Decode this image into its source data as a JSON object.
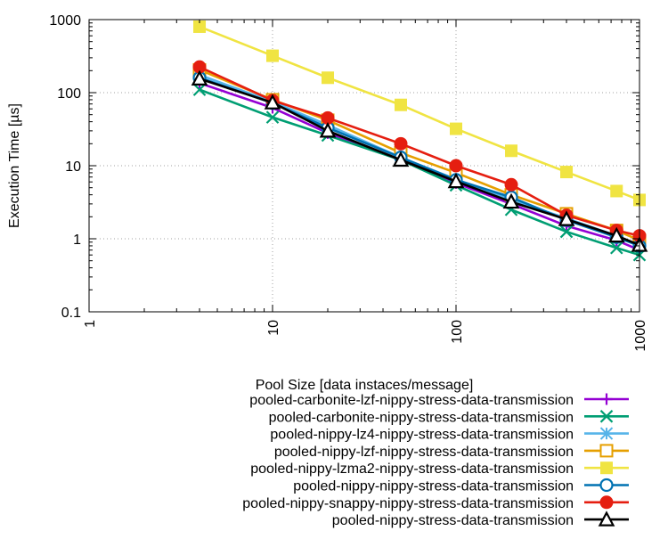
{
  "chart_data": {
    "type": "line",
    "title": "",
    "xlabel": "Pool Size [data instaces/message]",
    "ylabel": "Execution Time [µs]",
    "x_scale": "log",
    "y_scale": "log",
    "xlim": [
      1,
      1000
    ],
    "ylim": [
      0.1,
      1000
    ],
    "x_ticks": [
      {
        "value": 1,
        "label": "1"
      },
      {
        "value": 10,
        "label": "10"
      },
      {
        "value": 100,
        "label": "100"
      },
      {
        "value": 1000,
        "label": "1000"
      }
    ],
    "y_ticks": [
      {
        "value": 0.1,
        "label": "0.1"
      },
      {
        "value": 1,
        "label": "1"
      },
      {
        "value": 10,
        "label": "10"
      },
      {
        "value": 100,
        "label": "100"
      },
      {
        "value": 1000,
        "label": "1000"
      }
    ],
    "grid": true,
    "legend_position": "bottom-right, below plot",
    "x": [
      4,
      10,
      20,
      50,
      100,
      200,
      400,
      750,
      1000
    ],
    "series": [
      {
        "name": "pooled-carbonite-lzf-nippy-stress-data-transmission",
        "color": "#9400d3",
        "marker": "plus",
        "values": [
          135,
          62,
          28,
          12,
          5.8,
          3.0,
          1.5,
          0.95,
          0.7
        ]
      },
      {
        "name": "pooled-carbonite-nippy-stress-data-transmission",
        "color": "#009e73",
        "marker": "x",
        "values": [
          110,
          46,
          26,
          12,
          5.4,
          2.5,
          1.25,
          0.75,
          0.6
        ]
      },
      {
        "name": "pooled-nippy-lz4-nippy-stress-data-transmission",
        "color": "#56b4e9",
        "marker": "star",
        "values": [
          175,
          75,
          36,
          13,
          6.5,
          3.4,
          1.9,
          1.1,
          0.8
        ]
      },
      {
        "name": "pooled-nippy-lzf-nippy-stress-data-transmission",
        "color": "#e69f00",
        "marker": "open-square",
        "values": [
          205,
          80,
          42,
          15,
          8.0,
          4.0,
          2.2,
          1.3,
          0.95
        ]
      },
      {
        "name": "pooled-nippy-lzma2-nippy-stress-data-transmission",
        "color": "#f0e442",
        "marker": "filled-square",
        "values": [
          800,
          320,
          160,
          68,
          32,
          16,
          8.2,
          4.5,
          3.4
        ]
      },
      {
        "name": "pooled-nippy-nippy-stress-data-transmission",
        "color": "#0072b2",
        "marker": "open-circle",
        "values": [
          160,
          72,
          33,
          13,
          6.4,
          3.7,
          1.8,
          1.05,
          0.8
        ]
      },
      {
        "name": "pooled-nippy-snappy-nippy-stress-data-transmission",
        "color": "#e51e10",
        "marker": "filled-circle",
        "values": [
          225,
          78,
          45,
          20,
          10,
          5.5,
          2.1,
          1.3,
          1.1
        ]
      },
      {
        "name": "pooled-nippy-stress-data-transmission",
        "color": "#000000",
        "marker": "open-triangle",
        "values": [
          155,
          73,
          30,
          12,
          6.1,
          3.2,
          1.85,
          1.1,
          0.82
        ]
      }
    ]
  }
}
